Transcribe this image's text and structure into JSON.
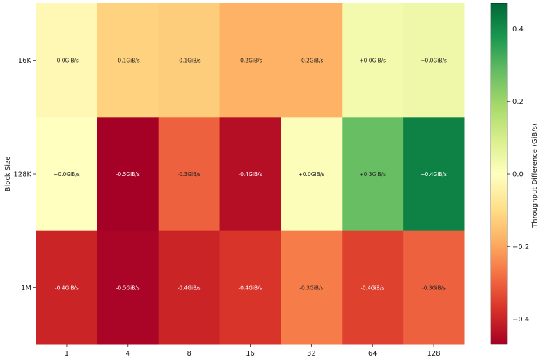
{
  "chart_data": {
    "type": "heatmap",
    "title": "",
    "xlabel": "",
    "ylabel": "Block Size",
    "x_categories": [
      "1",
      "4",
      "8",
      "16",
      "32",
      "64",
      "128"
    ],
    "y_categories": [
      "16K",
      "128K",
      "1M"
    ],
    "values": [
      [
        -0.02,
        -0.12,
        -0.13,
        -0.18,
        -0.18,
        0.03,
        0.04
      ],
      [
        0.0,
        -0.47,
        -0.3,
        -0.44,
        0.01,
        0.28,
        0.42
      ],
      [
        -0.4,
        -0.46,
        -0.4,
        -0.37,
        -0.26,
        -0.35,
        -0.3
      ]
    ],
    "cell_labels": [
      [
        "-0.0GiB/s",
        "-0.1GiB/s",
        "-0.1GiB/s",
        "-0.2GiB/s",
        "-0.2GiB/s",
        "+0.0GiB/s",
        "+0.0GiB/s"
      ],
      [
        "+0.0GiB/s",
        "-0.5GiB/s",
        "-0.3GiB/s",
        "-0.4GiB/s",
        "+0.0GiB/s",
        "+0.3GiB/s",
        "+0.4GiB/s"
      ],
      [
        "-0.4GiB/s",
        "-0.5GiB/s",
        "-0.4GiB/s",
        "-0.4GiB/s",
        "-0.3GiB/s",
        "-0.4GiB/s",
        "-0.3GiB/s"
      ]
    ],
    "colorbar": {
      "label": "Throughput Difference (GiB/s)",
      "range": [
        -0.47,
        0.47
      ],
      "ticks": [
        -0.4,
        -0.2,
        0.0,
        0.2,
        0.4
      ],
      "tick_labels": [
        "−0.4",
        "−0.2",
        "0.0",
        "0.2",
        "0.4"
      ],
      "colormap": "RdYlGn",
      "colors": [
        "#a50026",
        "#d73027",
        "#f46d43",
        "#fdae61",
        "#fee08b",
        "#ffffbf",
        "#d9ef8b",
        "#a6d96a",
        "#66bd63",
        "#1a9850",
        "#006837"
      ]
    }
  }
}
